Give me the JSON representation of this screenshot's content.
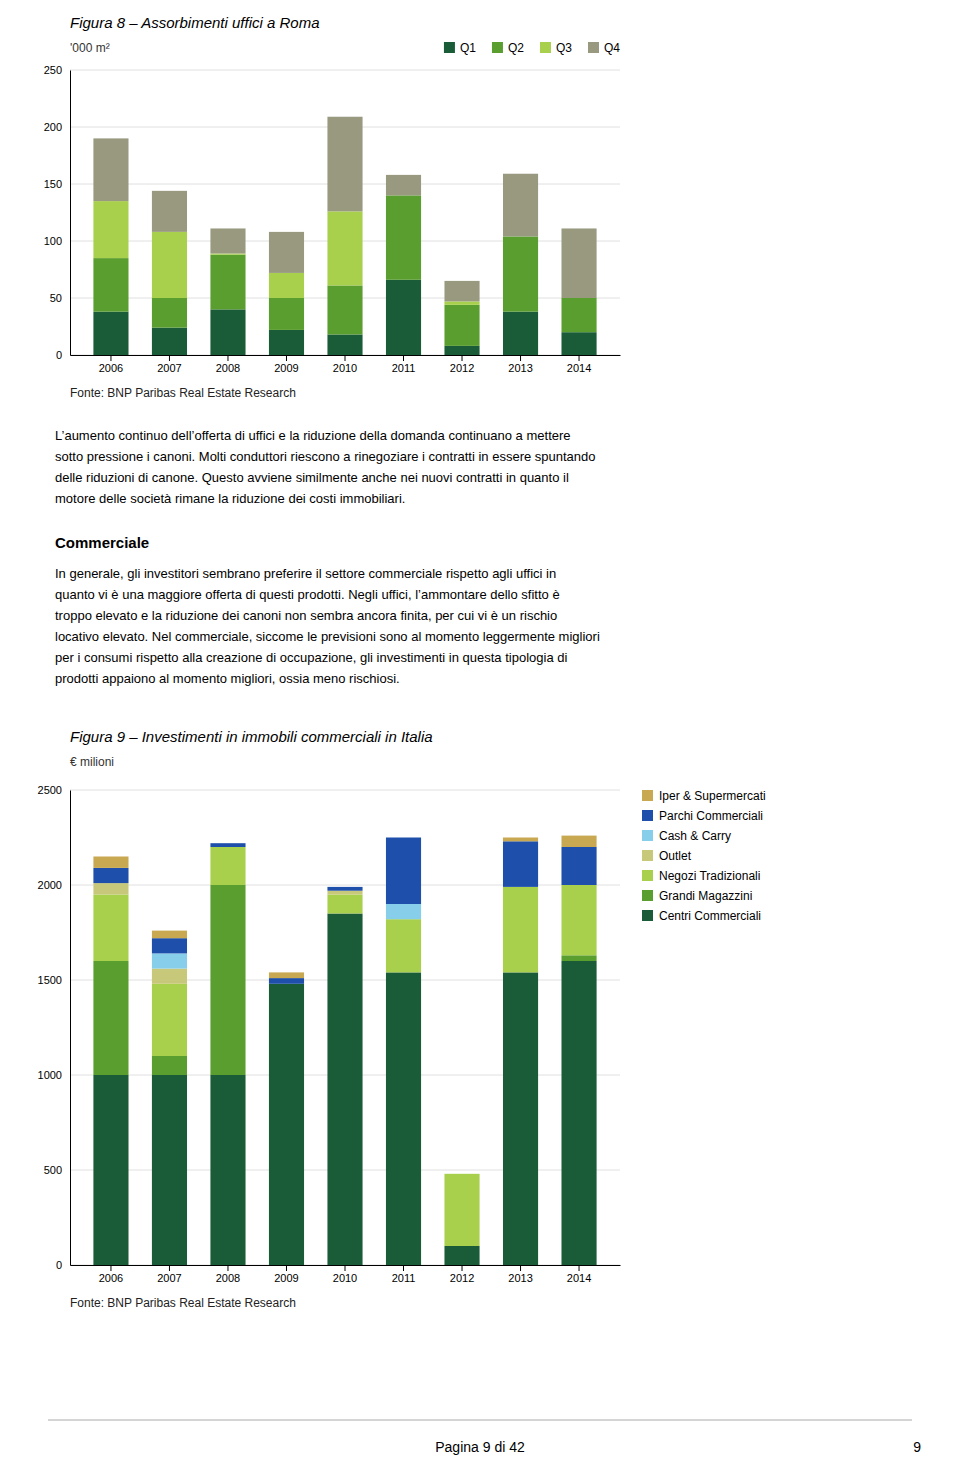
{
  "chart_data": [
    {
      "type": "bar",
      "stacked": true,
      "grid": true,
      "legend": "top-right",
      "title": "Figura 8 – Assorbimenti uffici a Roma",
      "y_label": "'000 m²",
      "source": "Fonte: BNP Paribas Real Estate Research",
      "categories": [
        "2006",
        "2007",
        "2008",
        "2009",
        "2010",
        "2011",
        "2012",
        "2013",
        "2014"
      ],
      "series": [
        {
          "name": "Q1",
          "color": "#1a5c38",
          "values": [
            38,
            24,
            40,
            22,
            18,
            66,
            8,
            38,
            20
          ]
        },
        {
          "name": "Q2",
          "color": "#5a9e2f",
          "values": [
            47,
            26,
            48,
            28,
            43,
            74,
            36,
            66,
            30
          ]
        },
        {
          "name": "Q3",
          "color": "#a8d04d",
          "values": [
            50,
            58,
            1,
            22,
            65,
            0,
            3,
            0,
            0
          ]
        },
        {
          "name": "Q4",
          "color": "#999980",
          "values": [
            55,
            36,
            22,
            36,
            83,
            18,
            18,
            55,
            61
          ]
        }
      ],
      "ylim": [
        0,
        250
      ],
      "yticks": [
        0,
        50,
        100,
        150,
        200,
        250
      ]
    },
    {
      "type": "bar",
      "stacked": true,
      "grid": true,
      "legend": "right",
      "title": "Figura 9 – Investimenti in immobili commerciali in Italia",
      "y_label": "€ milioni",
      "source": "Fonte: BNP Paribas Real Estate Research",
      "categories": [
        "2006",
        "2007",
        "2008",
        "2009",
        "2010",
        "2011",
        "2012",
        "2013",
        "2014"
      ],
      "series": [
        {
          "name": "Centri Commerciali",
          "color": "#1a5c38",
          "values": [
            1000,
            1000,
            1000,
            1480,
            1850,
            1540,
            100,
            1540,
            1600
          ]
        },
        {
          "name": "Grandi Magazzini",
          "color": "#5a9e2f",
          "values": [
            600,
            100,
            1000,
            0,
            0,
            0,
            0,
            0,
            30
          ]
        },
        {
          "name": "Negozi Tradizionali",
          "color": "#a8d04d",
          "values": [
            350,
            380,
            200,
            0,
            100,
            280,
            380,
            450,
            370
          ]
        },
        {
          "name": "Outlet",
          "color": "#c8c87a",
          "values": [
            60,
            80,
            0,
            0,
            20,
            0,
            0,
            0,
            0
          ]
        },
        {
          "name": "Cash & Carry",
          "color": "#87ceeb",
          "values": [
            0,
            80,
            0,
            0,
            0,
            80,
            0,
            0,
            0
          ]
        },
        {
          "name": "Parchi Commerciali",
          "color": "#1e4faa",
          "values": [
            80,
            80,
            20,
            30,
            20,
            350,
            0,
            240,
            200
          ]
        },
        {
          "name": "Iper & Supermercati",
          "color": "#c8a850",
          "values": [
            60,
            40,
            0,
            30,
            0,
            0,
            0,
            20,
            60
          ]
        }
      ],
      "ylim": [
        0,
        2500
      ],
      "yticks": [
        0,
        500,
        1000,
        1500,
        2000,
        2500
      ]
    }
  ],
  "text1_lines": [
    "L’aumento continuo dell’offerta di uffici e la riduzione della domanda continuano a mettere",
    "sotto pressione i canoni. Molti conduttori riescono a rinegoziare i contratti in essere spuntando",
    "delle riduzioni di canone. Questo avviene similmente anche nei nuovi contratti in quanto il",
    "motore delle società rimane la riduzione dei costi immobiliari."
  ],
  "commerciale_title": "Commerciale",
  "text2_lines": [
    "In generale, gli investitori sembrano preferire il settore commerciale rispetto agli uffici in",
    "quanto vi è una maggiore offerta di questi prodotti. Negli uffici, l’ammontare dello sfitto è",
    "troppo elevato e la riduzione dei canoni non sembra ancora finita, per cui vi è un rischio",
    "locativo elevato. Nel commerciale, siccome le previsioni sono al momento leggermente migliori",
    "per i consumi rispetto alla creazione di occupazione, gli investimenti in questa tipologia di",
    "prodotti appaiono al momento migliori, ossia meno rischiosi."
  ],
  "page_footer": "Pagina 9 di 42",
  "page_number": "9"
}
